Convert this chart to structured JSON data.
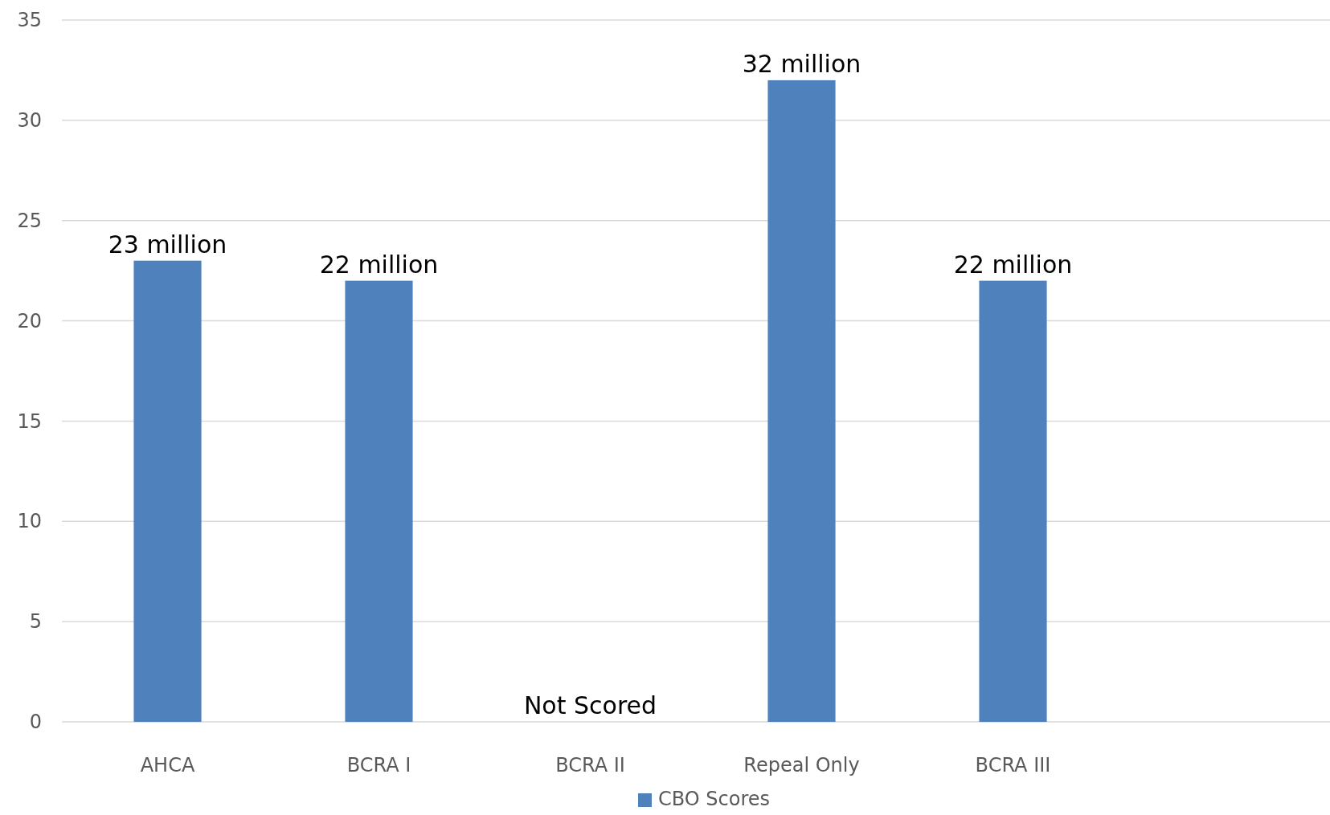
{
  "chart_data": {
    "type": "bar",
    "categories": [
      "AHCA",
      "BCRA I",
      "BCRA II",
      "Repeal Only",
      "BCRA III",
      null
    ],
    "series": [
      {
        "name": "CBO Scores",
        "color": "#4f81bd",
        "values": [
          23,
          22,
          null,
          32,
          22,
          null
        ],
        "value_labels": [
          "23 million",
          "22 million",
          "Not Scored",
          "32 million",
          "22 million",
          null
        ]
      }
    ],
    "ylim": [
      0,
      35
    ],
    "yticks": [
      0,
      5,
      10,
      15,
      20,
      25,
      30,
      35
    ],
    "grid": "y",
    "legend": "bottom"
  }
}
